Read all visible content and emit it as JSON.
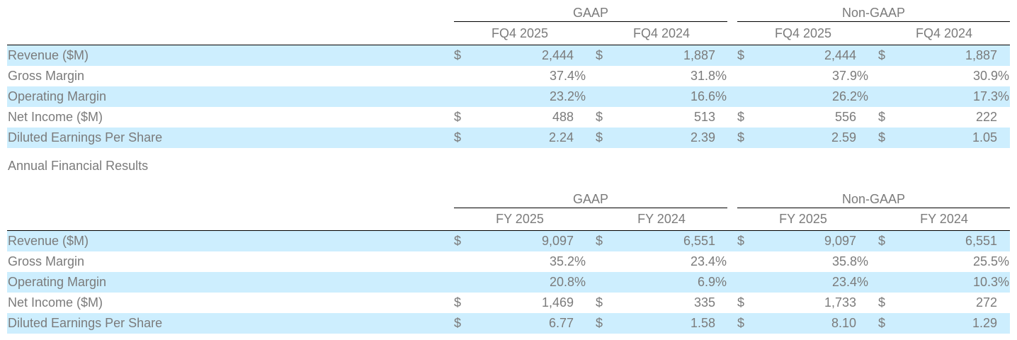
{
  "quarterly": {
    "groups": [
      "GAAP",
      "Non-GAAP"
    ],
    "periods": [
      "FQ4 2025",
      "FQ4 2024",
      "FQ4 2025",
      "FQ4 2024"
    ],
    "rows": [
      {
        "label": "Revenue ($M)",
        "cells": [
          {
            "cur": "$",
            "val": "2,444"
          },
          {
            "cur": "$",
            "val": "1,887"
          },
          {
            "cur": "$",
            "val": "2,444"
          },
          {
            "cur": "$",
            "val": "1,887"
          }
        ]
      },
      {
        "label": "Gross Margin",
        "cells": [
          {
            "cur": "",
            "val": "37.4%"
          },
          {
            "cur": "",
            "val": "31.8%"
          },
          {
            "cur": "",
            "val": "37.9%"
          },
          {
            "cur": "",
            "val": "30.9%"
          }
        ]
      },
      {
        "label": "Operating Margin",
        "cells": [
          {
            "cur": "",
            "val": "23.2%"
          },
          {
            "cur": "",
            "val": "16.6%"
          },
          {
            "cur": "",
            "val": "26.2%"
          },
          {
            "cur": "",
            "val": "17.3%"
          }
        ]
      },
      {
        "label": "Net Income ($M)",
        "cells": [
          {
            "cur": "$",
            "val": "488"
          },
          {
            "cur": "$",
            "val": "513"
          },
          {
            "cur": "$",
            "val": "556"
          },
          {
            "cur": "$",
            "val": "222"
          }
        ]
      },
      {
        "label": "Diluted Earnings Per Share",
        "cells": [
          {
            "cur": "$",
            "val": "2.24"
          },
          {
            "cur": "$",
            "val": "2.39"
          },
          {
            "cur": "$",
            "val": "2.59"
          },
          {
            "cur": "$",
            "val": "1.05"
          }
        ]
      }
    ]
  },
  "annual_title": "Annual Financial Results",
  "annual": {
    "groups": [
      "GAAP",
      "Non-GAAP"
    ],
    "periods": [
      "FY 2025",
      "FY 2024",
      "FY 2025",
      "FY 2024"
    ],
    "rows": [
      {
        "label": "Revenue ($M)",
        "cells": [
          {
            "cur": "$",
            "val": "9,097"
          },
          {
            "cur": "$",
            "val": "6,551"
          },
          {
            "cur": "$",
            "val": "9,097"
          },
          {
            "cur": "$",
            "val": "6,551"
          }
        ]
      },
      {
        "label": "Gross Margin",
        "cells": [
          {
            "cur": "",
            "val": "35.2%"
          },
          {
            "cur": "",
            "val": "23.4%"
          },
          {
            "cur": "",
            "val": "35.8%"
          },
          {
            "cur": "",
            "val": "25.5%"
          }
        ]
      },
      {
        "label": "Operating Margin",
        "cells": [
          {
            "cur": "",
            "val": "20.8%"
          },
          {
            "cur": "",
            "val": "6.9%"
          },
          {
            "cur": "",
            "val": "23.4%"
          },
          {
            "cur": "",
            "val": "10.3%"
          }
        ]
      },
      {
        "label": "Net Income ($M)",
        "cells": [
          {
            "cur": "$",
            "val": "1,469"
          },
          {
            "cur": "$",
            "val": "335"
          },
          {
            "cur": "$",
            "val": "1,733"
          },
          {
            "cur": "$",
            "val": "272"
          }
        ]
      },
      {
        "label": "Diluted Earnings Per Share",
        "cells": [
          {
            "cur": "$",
            "val": "6.77"
          },
          {
            "cur": "$",
            "val": "1.58"
          },
          {
            "cur": "$",
            "val": "8.10"
          },
          {
            "cur": "$",
            "val": "1.29"
          }
        ]
      }
    ]
  },
  "colors": {
    "row_shade": "#cdeefe",
    "text": "#7b7b7b",
    "rule": "#000000"
  }
}
